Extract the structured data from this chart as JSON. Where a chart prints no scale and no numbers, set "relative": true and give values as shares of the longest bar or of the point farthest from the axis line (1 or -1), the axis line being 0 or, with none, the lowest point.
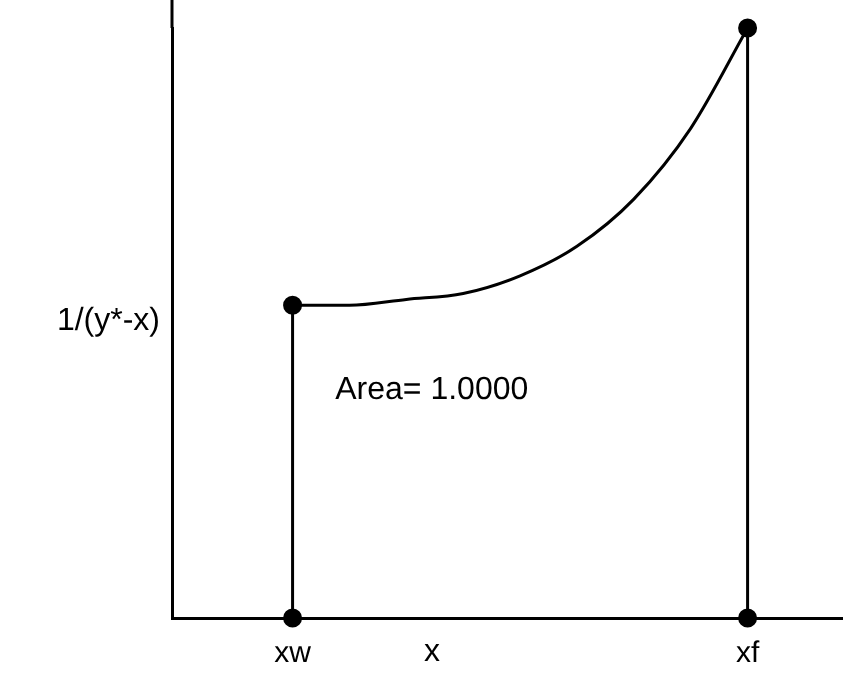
{
  "chart_data": {
    "type": "line",
    "relative": true,
    "ylabel": "1/(y*-x)",
    "xlabel": "x",
    "categories": [
      "xw",
      null,
      null,
      null,
      null,
      null,
      null,
      null,
      "xf"
    ],
    "series": [
      {
        "color": "#000000",
        "marker": "none",
        "values": [
          0.53,
          0.53,
          0.54,
          0.55,
          0.58,
          0.63,
          0.71,
          0.83,
          1
        ]
      },
      {
        "color": "#000000",
        "marker": "none",
        "x": [
          "xw",
          "xw"
        ],
        "values": [
          0,
          0.53
        ]
      },
      {
        "color": "#000000",
        "marker": "none",
        "x": [
          "xf",
          "xf"
        ],
        "values": [
          0,
          1
        ]
      },
      {
        "type": "scatter",
        "color": "#000000",
        "marker": "circle",
        "x": [
          "xw",
          "xw",
          "xf",
          "xf"
        ],
        "values": [
          0,
          0.53,
          0,
          1
        ]
      }
    ],
    "annotations": [
      "Area= 1.0000"
    ],
    "legend": false,
    "grid": false
  }
}
